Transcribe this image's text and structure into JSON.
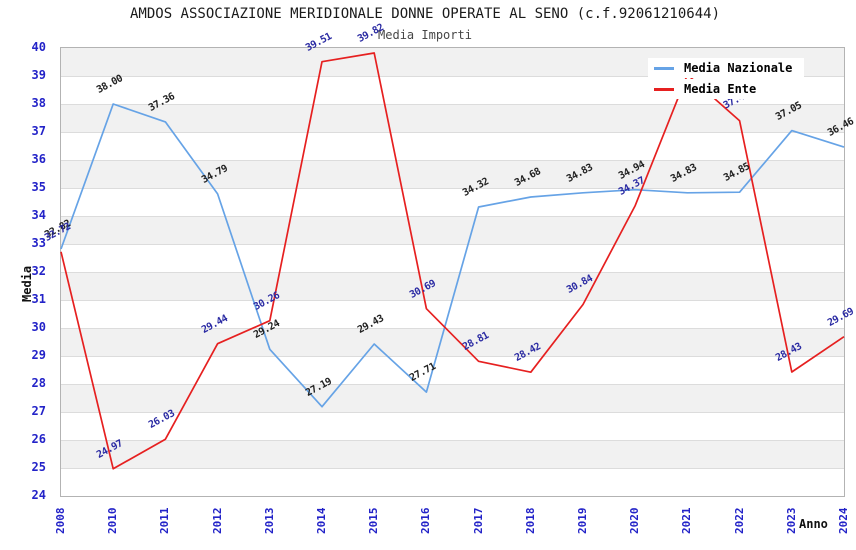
{
  "title": "AMDOS ASSOCIAZIONE MERIDIONALE DONNE OPERATE AL SENO (c.f.92061210644)",
  "subtitle": "Media Importi",
  "colors": {
    "axis_tick_blue": "#2323c8",
    "grid_line": "#dcdcdc",
    "band_gray": "#f1f1f1",
    "plot_border": "#b3b3b3",
    "nazionale_line": "#66a3e6",
    "ente_line": "#e62020",
    "nazionale_point_label": "#222222",
    "ente_point_label": "#2b2ba3"
  },
  "y_axis": {
    "label": "Media",
    "min": 24,
    "max": 40,
    "ticks": [
      "40",
      "39",
      "38",
      "37",
      "36",
      "35",
      "34",
      "33",
      "32",
      "31",
      "30",
      "29",
      "28",
      "27",
      "26",
      "25",
      "24"
    ]
  },
  "x_axis": {
    "label": "Anno",
    "categories": [
      "2008",
      "2010",
      "2011",
      "2012",
      "2013",
      "2014",
      "2015",
      "2016",
      "2017",
      "2018",
      "2019",
      "2020",
      "2021",
      "2022",
      "2023",
      "2024"
    ]
  },
  "legend": {
    "items": [
      {
        "label": "Media Nazionale",
        "color": "#66a3e6"
      },
      {
        "label": "Media Ente",
        "color": "#e62020"
      }
    ],
    "position": "top-right inside plot"
  },
  "chart_data": {
    "type": "line",
    "x": [
      "2008",
      "2010",
      "2011",
      "2012",
      "2013",
      "2014",
      "2015",
      "2016",
      "2017",
      "2018",
      "2019",
      "2020",
      "2021",
      "2022",
      "2023",
      "2024"
    ],
    "xlabel": "Anno",
    "ylabel": "Media",
    "ylim": [
      24,
      40
    ],
    "grid": "horizontal gridlines every 1 unit with alternating gray/white bands",
    "legend_position": "top-right",
    "series": [
      {
        "name": "Media Nazionale",
        "color": "#66a3e6",
        "label_color": "#222222",
        "values": [
          32.82,
          38.0,
          37.36,
          34.79,
          29.24,
          27.19,
          29.43,
          27.71,
          34.32,
          34.68,
          34.83,
          34.94,
          34.83,
          34.85,
          37.05,
          36.46
        ],
        "point_labels": [
          "32.82",
          "38.00",
          "37.36",
          "34.79",
          "29.24",
          "27.19",
          "29.43",
          "27.71",
          "34.32",
          "34.68",
          "34.83",
          "34.94",
          "34.83",
          "34.85",
          "37.05",
          "36.46"
        ]
      },
      {
        "name": "Media Ente",
        "color": "#e62020",
        "label_color": "#2b2ba3",
        "values": [
          32.72,
          24.97,
          26.03,
          29.44,
          30.26,
          39.51,
          39.82,
          30.69,
          28.81,
          28.42,
          30.84,
          34.37,
          39.05,
          37.4,
          28.43,
          29.69
        ],
        "point_labels": [
          "32.72",
          "24.97",
          "26.03",
          "29.44",
          "30.26",
          "39.51",
          "39.82",
          "30.69",
          "28.81",
          "28.42",
          "30.84",
          "34.37",
          "",
          "37.4",
          "28.43",
          "29.69"
        ]
      }
    ]
  }
}
